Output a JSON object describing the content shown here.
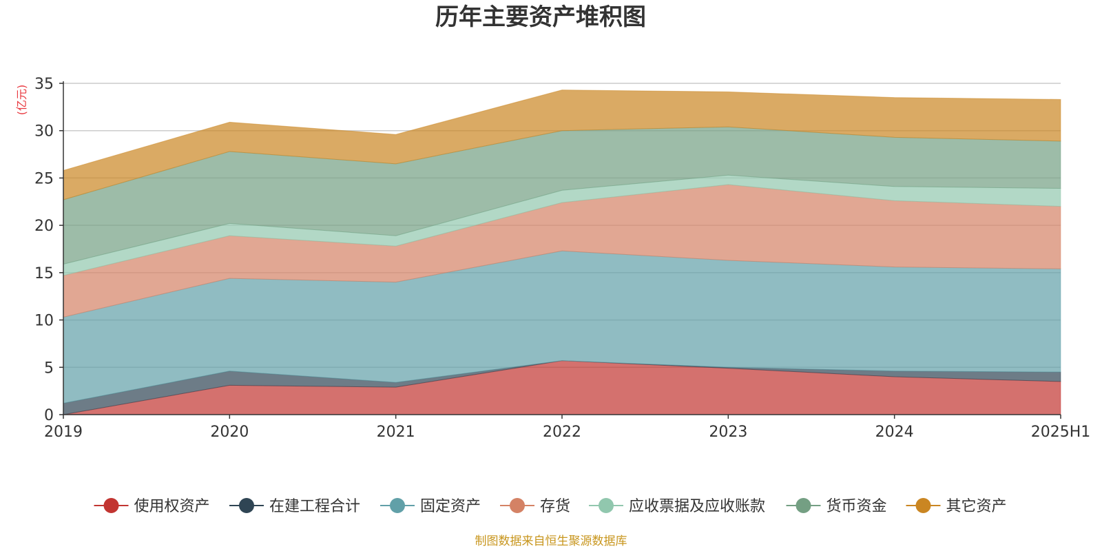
{
  "chart_data": {
    "type": "area",
    "stacked": true,
    "title": "历年主要资产堆积图",
    "unit_label": "(亿元)",
    "categories": [
      "2019",
      "2020",
      "2021",
      "2022",
      "2023",
      "2024",
      "2025H1"
    ],
    "ylim": [
      0,
      35
    ],
    "yticks": [
      0,
      5,
      10,
      15,
      20,
      25,
      30,
      35
    ],
    "grid": true,
    "legend_position": "bottom",
    "series": [
      {
        "name": "使用权资产",
        "color": "#c23531",
        "values": [
          0,
          3.1,
          2.9,
          5.7,
          4.9,
          4.0,
          3.5
        ]
      },
      {
        "name": "在建工程合计",
        "color": "#2f4554",
        "values": [
          1.2,
          1.5,
          0.5,
          0,
          0.1,
          0.6,
          1.0
        ]
      },
      {
        "name": "固定资产",
        "color": "#61a0a8",
        "values": [
          9.1,
          9.8,
          10.6,
          11.6,
          11.3,
          11.0,
          10.9
        ]
      },
      {
        "name": "存货",
        "color": "#d48265",
        "values": [
          4.4,
          4.5,
          3.8,
          5.1,
          8.0,
          7.0,
          6.6
        ]
      },
      {
        "name": "应收票据及应收账款",
        "color": "#91c7ae",
        "values": [
          1.2,
          1.3,
          1.1,
          1.3,
          1.0,
          1.5,
          1.9
        ]
      },
      {
        "name": "货币资金",
        "color": "#749f83",
        "values": [
          6.8,
          7.6,
          7.6,
          6.3,
          5.1,
          5.2,
          5.0
        ]
      },
      {
        "name": "其它资产",
        "color": "#ca8622",
        "values": [
          3.1,
          3.1,
          3.1,
          4.3,
          3.7,
          4.2,
          4.4
        ]
      }
    ]
  },
  "source_text": "制图数据来自恒生聚源数据库"
}
